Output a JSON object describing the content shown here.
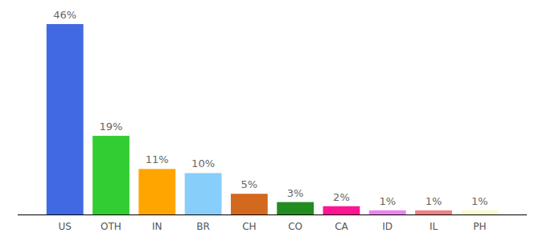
{
  "chart_data": {
    "type": "bar",
    "categories": [
      "US",
      "OTH",
      "IN",
      "BR",
      "CH",
      "CO",
      "CA",
      "ID",
      "IL",
      "PH"
    ],
    "values": [
      46,
      19,
      11,
      10,
      5,
      3,
      2,
      1,
      1,
      1
    ],
    "value_labels": [
      "46%",
      "19%",
      "11%",
      "10%",
      "5%",
      "3%",
      "2%",
      "1%",
      "1%",
      "1%"
    ],
    "colors": [
      "#4169e1",
      "#32cd32",
      "#ffa500",
      "#87cefa",
      "#d2691e",
      "#228b22",
      "#ff1493",
      "#ee82ee",
      "#f08080",
      "#fafad2"
    ],
    "data_labels": true,
    "tick_labels": "x"
  }
}
